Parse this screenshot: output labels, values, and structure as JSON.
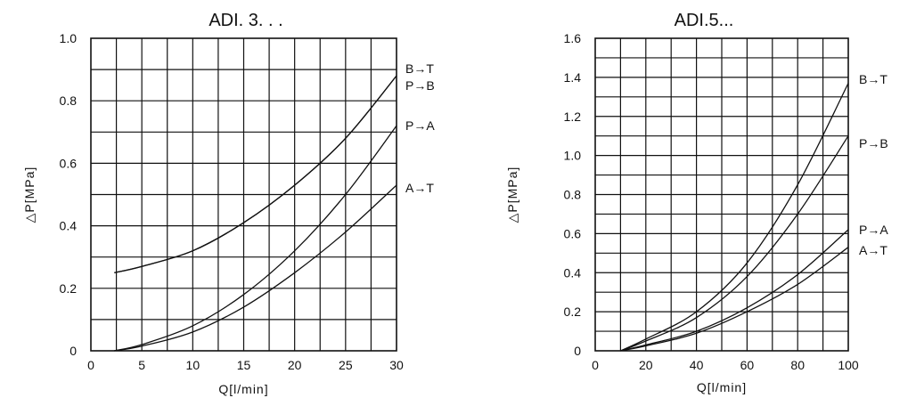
{
  "chart_data": [
    {
      "type": "line",
      "title": "ADI. 3. . .",
      "xlabel": "Q[l/min]",
      "ylabel": "△P[MPa]",
      "xlim": [
        0,
        30
      ],
      "ylim": [
        0,
        1.0
      ],
      "x_ticks": [
        "0",
        "5",
        "10",
        "15",
        "20",
        "25",
        "30"
      ],
      "y_ticks": [
        "0",
        "0.2",
        "0.4",
        "0.6",
        "0.8",
        "1.0"
      ],
      "grid": true,
      "series": [
        {
          "name": "B→T",
          "x": [
            2.3,
            5,
            10,
            15,
            20,
            25,
            30
          ],
          "values": [
            0.25,
            0.27,
            0.32,
            0.41,
            0.53,
            0.68,
            0.88
          ]
        },
        {
          "name": "P→B",
          "x": [
            2.3,
            5,
            10,
            15,
            20,
            25,
            30
          ],
          "values": [
            0.25,
            0.27,
            0.32,
            0.41,
            0.53,
            0.68,
            0.88
          ]
        },
        {
          "name": "P→A",
          "x": [
            2.3,
            5,
            10,
            15,
            20,
            25,
            30
          ],
          "values": [
            0.0,
            0.02,
            0.08,
            0.18,
            0.32,
            0.5,
            0.72
          ]
        },
        {
          "name": "A→T",
          "x": [
            2.3,
            5,
            10,
            15,
            20,
            25,
            30
          ],
          "values": [
            0.0,
            0.015,
            0.06,
            0.14,
            0.25,
            0.38,
            0.53
          ]
        }
      ]
    },
    {
      "type": "line",
      "title": "ADI.5...",
      "xlabel": "Q[l/min]",
      "ylabel": "△P[MPa]",
      "xlim": [
        0,
        100
      ],
      "ylim": [
        0,
        1.6
      ],
      "x_ticks": [
        "0",
        "20",
        "40",
        "60",
        "80",
        "100"
      ],
      "y_ticks": [
        "0",
        "0.2",
        "0.4",
        "0.6",
        "0.8",
        "1.0",
        "1.2",
        "1.4",
        "1.6"
      ],
      "grid": true,
      "series": [
        {
          "name": "B→T",
          "x": [
            10,
            20,
            40,
            60,
            80,
            100
          ],
          "values": [
            0.0,
            0.06,
            0.2,
            0.45,
            0.85,
            1.37
          ]
        },
        {
          "name": "P→B",
          "x": [
            10,
            20,
            40,
            60,
            80,
            100
          ],
          "values": [
            0.0,
            0.05,
            0.17,
            0.38,
            0.7,
            1.1
          ]
        },
        {
          "name": "P→A",
          "x": [
            10,
            20,
            40,
            60,
            80,
            100
          ],
          "values": [
            0.0,
            0.03,
            0.1,
            0.22,
            0.39,
            0.62
          ]
        },
        {
          "name": "A→T",
          "x": [
            10,
            20,
            40,
            60,
            80,
            100
          ],
          "values": [
            0.0,
            0.025,
            0.09,
            0.2,
            0.34,
            0.53
          ]
        }
      ]
    }
  ]
}
